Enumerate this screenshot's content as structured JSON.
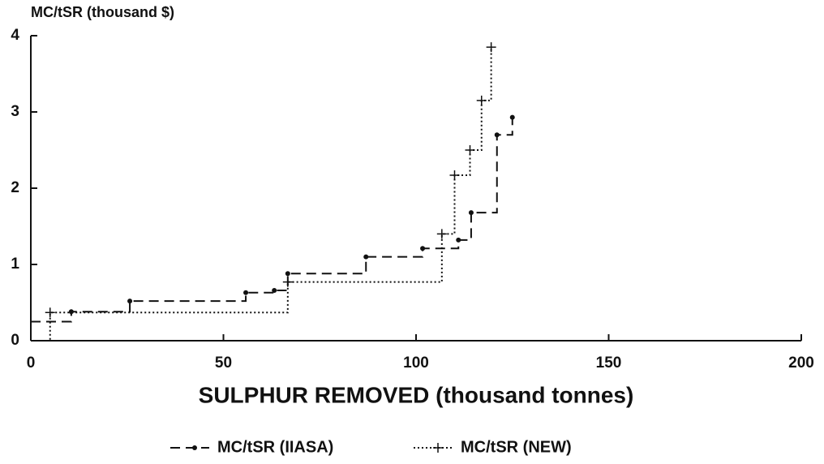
{
  "chart_data": {
    "type": "step",
    "y_label": "MC/tSR (thousand $)",
    "x_label": "SULPHUR REMOVED (thousand tonnes)",
    "xlim": [
      0,
      200
    ],
    "xticks": [
      0,
      50,
      100,
      150,
      200
    ],
    "ylim": [
      0,
      4
    ],
    "yticks": [
      0,
      1,
      2,
      3,
      4
    ],
    "series": [
      {
        "name": "MC/tSR (IIASA)",
        "color": "#111111",
        "style": "dashed",
        "marker": "dot",
        "x": [
          0,
          10.5,
          25.7,
          55.8,
          63.2,
          66.7,
          87,
          101.7,
          111,
          114.3,
          121,
          125
        ],
        "values": [
          0.25,
          0.38,
          0.52,
          0.63,
          0.66,
          0.88,
          1.1,
          1.21,
          1.32,
          1.68,
          2.7,
          2.93
        ]
      },
      {
        "name": "MC/tSR (NEW)",
        "color": "#111111",
        "style": "dotted",
        "marker": "cross",
        "x": [
          0,
          5,
          66.7,
          106.7,
          110,
          114,
          117,
          119.5
        ],
        "values": [
          0,
          0.37,
          0.77,
          1.4,
          2.17,
          2.5,
          3.15,
          3.85
        ]
      }
    ]
  }
}
